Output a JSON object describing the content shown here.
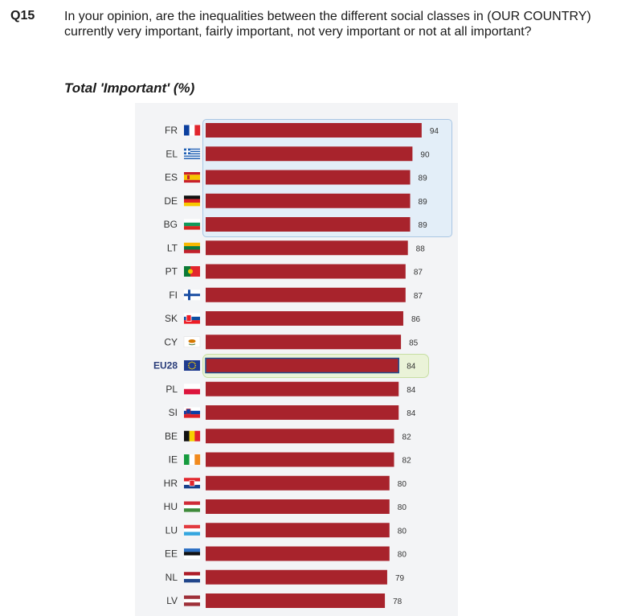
{
  "question": {
    "number": "Q15",
    "text": "In your opinion, are the inequalities between the different social classes in (OUR COUNTRY) currently very important, fairly important, not very important or not at all important?"
  },
  "chart_data": {
    "type": "bar",
    "orientation": "horizontal",
    "title": "Total 'Important' (%)",
    "categories": [
      "FR",
      "EL",
      "ES",
      "DE",
      "BG",
      "LT",
      "PT",
      "FI",
      "SK",
      "CY",
      "EU28",
      "PL",
      "SI",
      "BE",
      "IE",
      "HR",
      "HU",
      "LU",
      "EE",
      "NL",
      "LV"
    ],
    "values": [
      94,
      90,
      89,
      89,
      89,
      88,
      87,
      87,
      86,
      85,
      84,
      84,
      84,
      82,
      82,
      80,
      80,
      80,
      80,
      79,
      78
    ],
    "highlighted_categories": [
      "FR",
      "EL",
      "ES",
      "DE",
      "BG"
    ],
    "reference_category": "EU28",
    "xlim": [
      0,
      100
    ],
    "grid": false,
    "legend": "none",
    "colors": {
      "bar": "#a8232c",
      "bar_reference_border": "#1f4f8f",
      "highlight_fill": "#e3eef8",
      "highlight_border": "#a9c6e3",
      "reference_fill": "#eaf3d8",
      "reference_border": "#c6dea3"
    }
  }
}
